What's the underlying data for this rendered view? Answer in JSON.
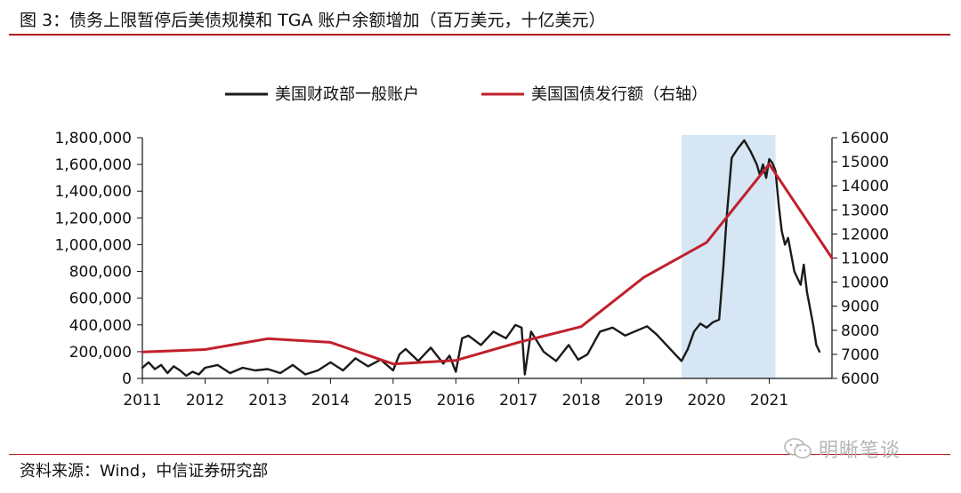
{
  "header": {
    "title": "图 3：债务上限暂停后美债规模和 TGA 账户余额增加（百万美元，十亿美元）"
  },
  "footer": {
    "source": "资料来源：Wind，中信证券研究部"
  },
  "watermark": {
    "text": "明晰笔谈",
    "icon": "wechat-icon"
  },
  "colors": {
    "accent": "#b0191f",
    "tga": "#1a1a1a",
    "debt": "#c0202b",
    "highlight": "#d6e6f4"
  },
  "chart_data": {
    "type": "line",
    "legend_position": "top-center",
    "grid": false,
    "x_ticks": [
      "2011",
      "2012",
      "2013",
      "2014",
      "2015",
      "2016",
      "2017",
      "2018",
      "2019",
      "2020",
      "2021"
    ],
    "x_range": [
      2011,
      2022
    ],
    "y_left": {
      "range": [
        0,
        1800000
      ],
      "ticks": [
        "0",
        "200,000",
        "400,000",
        "600,000",
        "800,000",
        "1,000,000",
        "1,200,000",
        "1,400,000",
        "1,600,000",
        "1,800,000"
      ]
    },
    "y_right": {
      "range": [
        6000,
        16000
      ],
      "ticks": [
        "6000",
        "7000",
        "8000",
        "9000",
        "10000",
        "11000",
        "12000",
        "13000",
        "14000",
        "15000",
        "16000"
      ]
    },
    "highlight": {
      "x_start": 2019.6,
      "x_end": 2021.1
    },
    "series": [
      {
        "name": "美国财政部一般账户",
        "axis": "left",
        "x": [
          2011.0,
          2011.1,
          2011.2,
          2011.3,
          2011.4,
          2011.5,
          2011.6,
          2011.7,
          2011.8,
          2011.9,
          2012.0,
          2012.2,
          2012.4,
          2012.6,
          2012.8,
          2013.0,
          2013.2,
          2013.4,
          2013.6,
          2013.8,
          2014.0,
          2014.2,
          2014.4,
          2014.6,
          2014.8,
          2015.0,
          2015.1,
          2015.2,
          2015.4,
          2015.6,
          2015.8,
          2015.9,
          2016.0,
          2016.1,
          2016.2,
          2016.4,
          2016.6,
          2016.8,
          2016.95,
          2017.05,
          2017.1,
          2017.2,
          2017.4,
          2017.6,
          2017.8,
          2017.95,
          2018.1,
          2018.3,
          2018.5,
          2018.7,
          2018.9,
          2019.05,
          2019.2,
          2019.4,
          2019.6,
          2019.7,
          2019.8,
          2019.9,
          2020.0,
          2020.1,
          2020.2,
          2020.27,
          2020.32,
          2020.4,
          2020.5,
          2020.6,
          2020.7,
          2020.8,
          2020.85,
          2020.9,
          2020.95,
          2021.0,
          2021.05,
          2021.1,
          2021.15,
          2021.2,
          2021.25,
          2021.3,
          2021.4,
          2021.5,
          2021.55,
          2021.6,
          2021.7,
          2021.75,
          2021.8
        ],
        "values": [
          80000,
          120000,
          70000,
          100000,
          40000,
          90000,
          60000,
          20000,
          50000,
          30000,
          80000,
          100000,
          40000,
          80000,
          60000,
          70000,
          40000,
          100000,
          30000,
          60000,
          120000,
          60000,
          150000,
          90000,
          140000,
          60000,
          180000,
          220000,
          130000,
          230000,
          110000,
          170000,
          50000,
          300000,
          320000,
          250000,
          350000,
          300000,
          400000,
          380000,
          30000,
          350000,
          200000,
          130000,
          250000,
          140000,
          180000,
          350000,
          380000,
          320000,
          360000,
          390000,
          330000,
          230000,
          130000,
          220000,
          350000,
          410000,
          380000,
          420000,
          440000,
          850000,
          1200000,
          1650000,
          1720000,
          1780000,
          1700000,
          1600000,
          1520000,
          1600000,
          1500000,
          1640000,
          1610000,
          1550000,
          1300000,
          1100000,
          1000000,
          1050000,
          800000,
          700000,
          850000,
          650000,
          400000,
          250000,
          200000
        ]
      },
      {
        "name": "美国国债发行额（右轴）",
        "axis": "right",
        "x": [
          2011.0,
          2012.0,
          2013.0,
          2014.0,
          2015.0,
          2016.0,
          2017.0,
          2018.0,
          2019.0,
          2020.0,
          2021.0,
          2022.0
        ],
        "values": [
          7100,
          7200,
          7650,
          7500,
          6600,
          6750,
          7500,
          8150,
          10200,
          11650,
          14900,
          11000
        ]
      }
    ]
  }
}
